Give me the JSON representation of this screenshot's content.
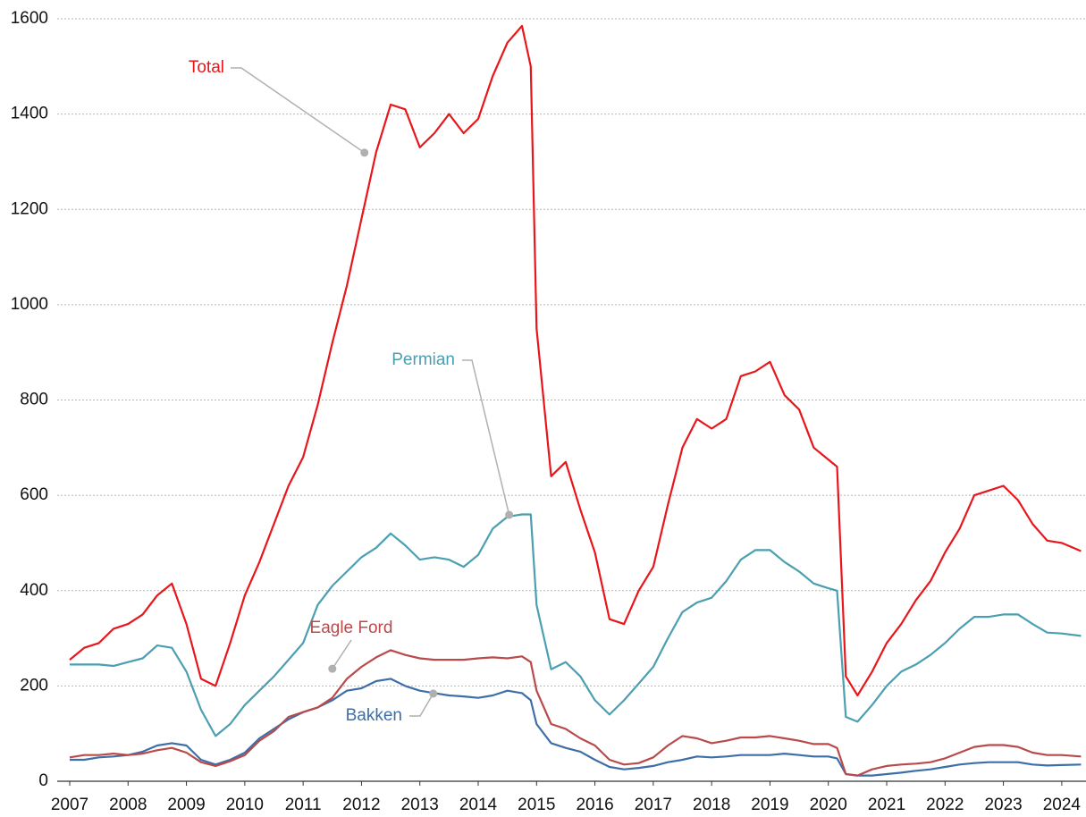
{
  "chart_data": {
    "type": "line",
    "x": [
      2007,
      2007.25,
      2007.5,
      2007.75,
      2008,
      2008.25,
      2008.5,
      2008.75,
      2009,
      2009.25,
      2009.5,
      2009.75,
      2010,
      2010.25,
      2010.5,
      2010.75,
      2011,
      2011.25,
      2011.5,
      2011.75,
      2012,
      2012.25,
      2012.5,
      2012.75,
      2013,
      2013.25,
      2013.5,
      2013.75,
      2014,
      2014.25,
      2014.5,
      2014.75,
      2014.9,
      2015,
      2015.25,
      2015.5,
      2015.75,
      2016,
      2016.25,
      2016.5,
      2016.75,
      2017,
      2017.25,
      2017.5,
      2017.75,
      2018,
      2018.25,
      2018.5,
      2018.75,
      2019,
      2019.25,
      2019.5,
      2019.75,
      2020,
      2020.15,
      2020.3,
      2020.5,
      2020.75,
      2021,
      2021.25,
      2021.5,
      2021.75,
      2022,
      2022.25,
      2022.5,
      2022.75,
      2023,
      2023.25,
      2023.5,
      2023.75,
      2024,
      2024.33
    ],
    "series": [
      {
        "name": "Total",
        "color": "#e8161b",
        "values": [
          255,
          280,
          290,
          320,
          330,
          350,
          390,
          415,
          330,
          215,
          200,
          290,
          390,
          460,
          540,
          620,
          680,
          790,
          920,
          1040,
          1180,
          1320,
          1420,
          1410,
          1330,
          1360,
          1400,
          1360,
          1390,
          1480,
          1550,
          1585,
          1500,
          950,
          640,
          670,
          570,
          480,
          340,
          330,
          400,
          450,
          580,
          700,
          760,
          740,
          760,
          850,
          860,
          880,
          810,
          780,
          700,
          675,
          660,
          220,
          180,
          230,
          290,
          330,
          380,
          420,
          480,
          530,
          600,
          610,
          620,
          590,
          540,
          505,
          500,
          483
        ]
      },
      {
        "name": "Permian",
        "color": "#4a9fb0",
        "values": [
          245,
          245,
          245,
          242,
          250,
          258,
          285,
          280,
          230,
          150,
          95,
          120,
          160,
          190,
          220,
          255,
          290,
          370,
          410,
          440,
          470,
          490,
          520,
          495,
          465,
          470,
          465,
          450,
          475,
          530,
          555,
          560,
          560,
          370,
          235,
          250,
          220,
          170,
          140,
          170,
          205,
          240,
          300,
          355,
          375,
          385,
          420,
          465,
          485,
          485,
          460,
          440,
          415,
          405,
          400,
          135,
          125,
          160,
          200,
          230,
          245,
          265,
          290,
          320,
          345,
          345,
          350,
          350,
          330,
          312,
          310,
          305
        ]
      },
      {
        "name": "Eagle Ford",
        "color": "#b94a4a",
        "values": [
          50,
          55,
          55,
          58,
          55,
          58,
          65,
          70,
          60,
          40,
          32,
          42,
          55,
          85,
          105,
          135,
          145,
          155,
          175,
          215,
          240,
          260,
          275,
          265,
          258,
          255,
          255,
          255,
          258,
          260,
          258,
          262,
          250,
          190,
          120,
          110,
          90,
          75,
          45,
          35,
          38,
          50,
          75,
          95,
          90,
          80,
          85,
          92,
          92,
          95,
          90,
          85,
          78,
          78,
          70,
          15,
          12,
          25,
          32,
          35,
          37,
          40,
          48,
          60,
          72,
          76,
          76,
          72,
          60,
          55,
          55,
          52
        ]
      },
      {
        "name": "Bakken",
        "color": "#3e6ea8",
        "values": [
          45,
          45,
          50,
          52,
          55,
          62,
          75,
          80,
          75,
          45,
          35,
          45,
          60,
          90,
          110,
          130,
          145,
          155,
          170,
          190,
          195,
          210,
          215,
          200,
          190,
          185,
          180,
          178,
          175,
          180,
          190,
          185,
          170,
          120,
          80,
          70,
          62,
          45,
          30,
          25,
          28,
          32,
          40,
          45,
          52,
          50,
          52,
          55,
          55,
          55,
          58,
          55,
          52,
          52,
          48,
          15,
          12,
          12,
          15,
          18,
          22,
          25,
          30,
          35,
          38,
          40,
          40,
          40,
          35,
          33,
          34,
          35
        ]
      }
    ],
    "xlim": [
      2007,
      2024.4
    ],
    "xticks": [
      2007,
      2008,
      2009,
      2010,
      2011,
      2012,
      2013,
      2014,
      2015,
      2016,
      2017,
      2018,
      2019,
      2020,
      2021,
      2022,
      2023,
      2024
    ],
    "ylim": [
      0,
      1600
    ],
    "yticks": [
      0,
      200,
      400,
      600,
      800,
      1000,
      1200,
      1400,
      1600
    ],
    "grid": true,
    "annotations": [
      {
        "text": "Total",
        "series": 0,
        "x": 2012.05,
        "y": 1319
      },
      {
        "text": "Permian",
        "series": 1,
        "x": 2014.53,
        "y": 559
      },
      {
        "text": "Eagle Ford",
        "series": 2,
        "x": 2011.5,
        "y": 236
      },
      {
        "text": "Bakken",
        "series": 3,
        "x": 2013.23,
        "y": 184
      }
    ]
  }
}
